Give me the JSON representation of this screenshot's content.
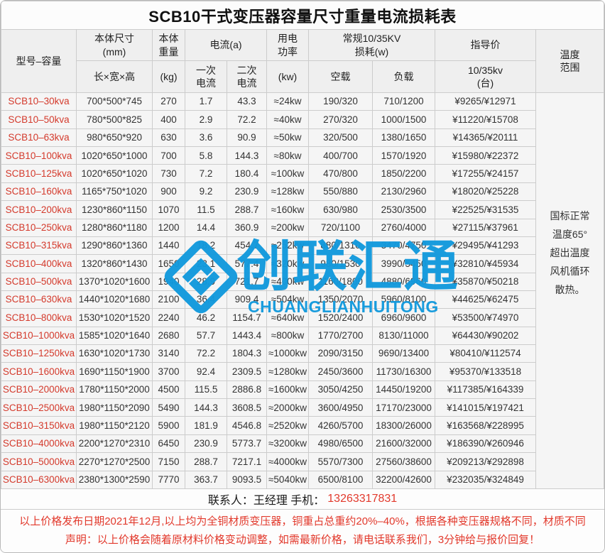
{
  "title": "SCB10干式变压器容量尺寸重量电流损耗表",
  "table": {
    "headers": {
      "model": "型号–容量",
      "size": "本体尺寸\n(mm)",
      "size_sub": "长×宽×高",
      "weight": "本体\n重量",
      "weight_sub": "(kg)",
      "current": "电流(a)",
      "current_primary": "一次\n电流",
      "current_secondary": "二次\n电流",
      "power": "用电\n功率",
      "power_sub": "(kw)",
      "loss": "常规10/35KV\n损耗(w)",
      "loss_noload": "空载",
      "loss_load": "负载",
      "price": "指导价",
      "price_sub": "10/35kv\n(台)",
      "temperature": "温度\n范围"
    },
    "temperature_note_lines": [
      "国标正常",
      "温度65°",
      "超出温度",
      "风机循环",
      "散热。"
    ],
    "rows": [
      [
        "SCB10–30kva",
        "700*500*745",
        "270",
        "1.7",
        "43.3",
        "≈24kw",
        "190/320",
        "710/1200",
        "¥9265/¥12971"
      ],
      [
        "SCB10–50kva",
        "780*500*825",
        "400",
        "2.9",
        "72.2",
        "≈40kw",
        "270/320",
        "1000/1500",
        "¥11220/¥15708"
      ],
      [
        "SCB10–63kva",
        "980*650*920",
        "630",
        "3.6",
        "90.9",
        "≈50kw",
        "320/500",
        "1380/1650",
        "¥14365/¥20111"
      ],
      [
        "SCB10–100kva",
        "1020*650*1000",
        "700",
        "5.8",
        "144.3",
        "≈80kw",
        "400/700",
        "1570/1920",
        "¥15980/¥22372"
      ],
      [
        "SCB10–125kva",
        "1020*650*1020",
        "730",
        "7.2",
        "180.4",
        "≈100kw",
        "470/800",
        "1850/2200",
        "¥17255/¥24157"
      ],
      [
        "SCB10–160kva",
        "1165*750*1020",
        "900",
        "9.2",
        "230.9",
        "≈128kw",
        "550/880",
        "2130/2960",
        "¥18020/¥25228"
      ],
      [
        "SCB10–200kva",
        "1230*860*1150",
        "1070",
        "11.5",
        "288.7",
        "≈160kw",
        "630/980",
        "2530/3500",
        "¥22525/¥31535"
      ],
      [
        "SCB10–250kva",
        "1280*860*1180",
        "1200",
        "14.4",
        "360.9",
        "≈200kw",
        "720/1100",
        "2760/4000",
        "¥27115/¥37961"
      ],
      [
        "SCB10–315kva",
        "1290*860*1360",
        "1440",
        "18.2",
        "454.7",
        "≈252kw",
        "880/1310",
        "3470/4750",
        "¥29495/¥41293"
      ],
      [
        "SCB10–400kva",
        "1320*860*1430",
        "1650",
        "23.1",
        "577.4",
        "≈320kw",
        "980/1530",
        "3990/5450",
        "¥32810/¥45934"
      ],
      [
        "SCB10–500kva",
        "1370*1020*1600",
        "1940",
        "28.9",
        "721.7",
        "≈400kw",
        "1160/1800",
        "4880/6960",
        "¥35870/¥50218"
      ],
      [
        "SCB10–630kva",
        "1440*1020*1680",
        "2100",
        "36.4",
        "909.4",
        "≈504kw",
        "1350/2070",
        "5960/8100",
        "¥44625/¥62475"
      ],
      [
        "SCB10–800kva",
        "1530*1020*1520",
        "2240",
        "46.2",
        "1154.7",
        "≈640kw",
        "1520/2400",
        "6960/9600",
        "¥53500/¥74970"
      ],
      [
        "SCB10–1000kva",
        "1585*1020*1640",
        "2680",
        "57.7",
        "1443.4",
        "≈800kw",
        "1770/2700",
        "8130/11000",
        "¥64430/¥90202"
      ],
      [
        "SCB10–1250kva",
        "1630*1020*1730",
        "3140",
        "72.2",
        "1804.3",
        "≈1000kw",
        "2090/3150",
        "9690/13400",
        "¥80410/¥112574"
      ],
      [
        "SCB10–1600kva",
        "1690*1150*1900",
        "3700",
        "92.4",
        "2309.5",
        "≈1280kw",
        "2450/3600",
        "11730/16300",
        "¥95370/¥133518"
      ],
      [
        "SCB10–2000kva",
        "1780*1150*2000",
        "4500",
        "115.5",
        "2886.8",
        "≈1600kw",
        "3050/4250",
        "14450/19200",
        "¥117385/¥164339"
      ],
      [
        "SCB10–2500kva",
        "1980*1150*2090",
        "5490",
        "144.3",
        "3608.5",
        "≈2000kw",
        "3600/4950",
        "17170/23000",
        "¥141015/¥197421"
      ],
      [
        "SCB10–3150kva",
        "1980*1150*2120",
        "5900",
        "181.9",
        "4546.8",
        "≈2520kw",
        "4260/5700",
        "18300/26000",
        "¥163568/¥228995"
      ],
      [
        "SCB10–4000kva",
        "2200*1270*2310",
        "6450",
        "230.9",
        "5773.7",
        "≈3200kw",
        "4980/6500",
        "21600/32000",
        "¥186390/¥260946"
      ],
      [
        "SCB10–5000kva",
        "2270*1270*2500",
        "7150",
        "288.7",
        "7217.1",
        "≈4000kw",
        "5570/7300",
        "27560/38600",
        "¥209213/¥292898"
      ],
      [
        "SCB10–6300kva",
        "2380*1300*2590",
        "7770",
        "363.7",
        "9093.5",
        "≈5040kw",
        "6500/8100",
        "32200/42600",
        "¥232035/¥324849"
      ]
    ]
  },
  "footer": {
    "contact_label": "联系人：王经理  手机：",
    "contact_phone": "13263317831",
    "notice_line1": "以上价格发布日期2021年12月,以上均为全铜材质变压器，铜重占总重约20%–40%，根据各种变压器规格不同，材质不同",
    "notice_line2": "声明：以上价格会随着原材料价格变动调整，如需最新价格，请电话联系我们，3分钟给与报价回复！"
  },
  "watermark": {
    "cn": "创联汇通",
    "en": "CHUANGLIANHUITONG"
  },
  "colors": {
    "model_red": "#d43a2c",
    "notice_red": "#e2392c",
    "logo_blue": "#1199dd"
  }
}
